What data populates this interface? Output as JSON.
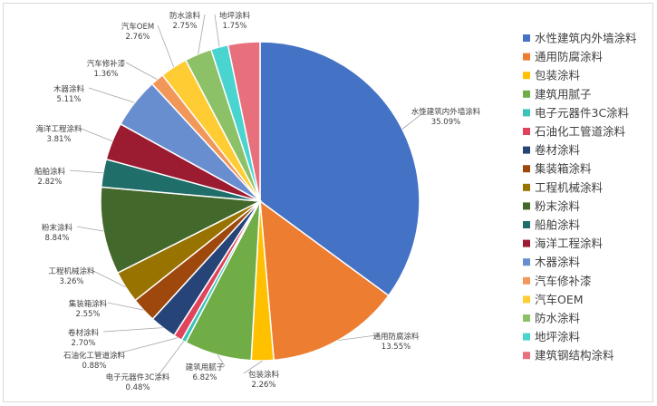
{
  "chart_data": {
    "type": "pie",
    "title": "",
    "legend_position": "right",
    "series": [
      {
        "name": "水性建筑内外墙涂料",
        "value": 35.09,
        "label": "35.09%",
        "color": "#4472C4"
      },
      {
        "name": "通用防腐涂料",
        "value": 13.55,
        "label": "13.55%",
        "color": "#ED7D31"
      },
      {
        "name": "包装涂料",
        "value": 2.26,
        "label": "2.26%",
        "color": "#FFC000"
      },
      {
        "name": "建筑用腻子",
        "value": 6.82,
        "label": "6.82%",
        "color": "#70AD47"
      },
      {
        "name": "电子元器件3C涂料",
        "value": 0.48,
        "label": "0.48%",
        "color": "#3BC4B8"
      },
      {
        "name": "石油化工管道涂料",
        "value": 0.88,
        "label": "0.88%",
        "color": "#E0445C"
      },
      {
        "name": "卷材涂料",
        "value": 2.7,
        "label": "2.70%",
        "color": "#264478"
      },
      {
        "name": "集装箱涂料",
        "value": 2.55,
        "label": "2.55%",
        "color": "#9E480E"
      },
      {
        "name": "工程机械涂料",
        "value": 3.26,
        "label": "3.26%",
        "color": "#997300"
      },
      {
        "name": "粉末涂料",
        "value": 8.84,
        "label": "8.84%",
        "color": "#43682B"
      },
      {
        "name": "船舶涂料",
        "value": 2.82,
        "label": "2.82%",
        "color": "#1F6E6A"
      },
      {
        "name": "海洋工程涂料",
        "value": 3.81,
        "label": "3.81%",
        "color": "#9B1B30"
      },
      {
        "name": "木器涂料",
        "value": 5.11,
        "label": "5.11%",
        "color": "#698ED0"
      },
      {
        "name": "汽车修补漆",
        "value": 1.36,
        "label": "1.36%",
        "color": "#F1975A"
      },
      {
        "name": "汽车OEM",
        "value": 2.76,
        "label": "2.76%",
        "color": "#FFCD33"
      },
      {
        "name": "防水涂料",
        "value": 2.75,
        "label": "2.75%",
        "color": "#8CC168"
      },
      {
        "name": "地坪涂料",
        "value": 1.75,
        "label": "1.75%",
        "color": "#49D4D0"
      },
      {
        "name": "建筑钢结构涂料",
        "value": 3.23,
        "label": "",
        "color": "#E8707D"
      }
    ]
  }
}
